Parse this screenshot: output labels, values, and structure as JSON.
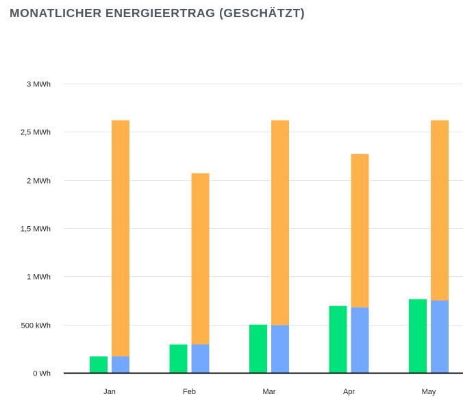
{
  "chart_data": {
    "type": "bar",
    "title": "MONATLICHER ENERGIEERTRAG (GESCHÄTZT)",
    "xlabel": "",
    "ylabel": "",
    "ylim": [
      0,
      3000
    ],
    "unit": "kWh",
    "yticks": [
      {
        "value": 0,
        "label": "0 Wh"
      },
      {
        "value": 500,
        "label": "500 kWh"
      },
      {
        "value": 1000,
        "label": "1 MWh"
      },
      {
        "value": 1500,
        "label": "1,5 MWh"
      },
      {
        "value": 2000,
        "label": "2 MWh"
      },
      {
        "value": 2500,
        "label": "2,5 MWh"
      },
      {
        "value": 3000,
        "label": "3 MWh"
      }
    ],
    "grid": true,
    "legend": "none",
    "categories": [
      "Jan",
      "Feb",
      "Mar",
      "Apr",
      "May"
    ],
    "series": [
      {
        "color": "#00e27a",
        "stack": "a",
        "values": [
          170,
          295,
          500,
          695,
          765
        ]
      },
      {
        "color": "#73a8ff",
        "stack": "b",
        "values": [
          170,
          295,
          495,
          680,
          750
        ]
      },
      {
        "color": "#ffb24c",
        "stack": "b",
        "values": [
          2450,
          1775,
          2125,
          1590,
          1870
        ]
      }
    ]
  }
}
